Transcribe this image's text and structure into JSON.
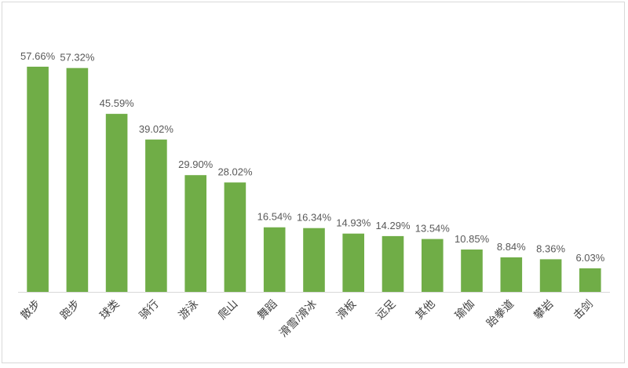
{
  "chart_data": {
    "type": "bar",
    "categories": [
      "散步",
      "跑步",
      "球类",
      "骑行",
      "游泳",
      "爬山",
      "舞蹈",
      "滑雪/滑冰",
      "滑板",
      "远足",
      "其他",
      "瑜伽",
      "跆拳道",
      "攀岩",
      "击剑"
    ],
    "values": [
      57.66,
      57.32,
      45.59,
      39.02,
      29.9,
      28.02,
      16.54,
      16.34,
      14.93,
      14.29,
      13.54,
      10.85,
      8.84,
      8.36,
      6.03
    ],
    "value_labels": [
      "57.66%",
      "57.32%",
      "45.59%",
      "39.02%",
      "29.90%",
      "28.02%",
      "16.54%",
      "16.34%",
      "14.93%",
      "14.29%",
      "13.54%",
      "10.85%",
      "8.84%",
      "8.36%",
      "6.03%"
    ],
    "unit": "%",
    "title": "",
    "xlabel": "",
    "ylabel": "",
    "ylim": [
      0,
      60
    ],
    "grid": false,
    "legend": "none",
    "bar_color": "#70ad47",
    "axis_color": "#d9d9d9"
  }
}
